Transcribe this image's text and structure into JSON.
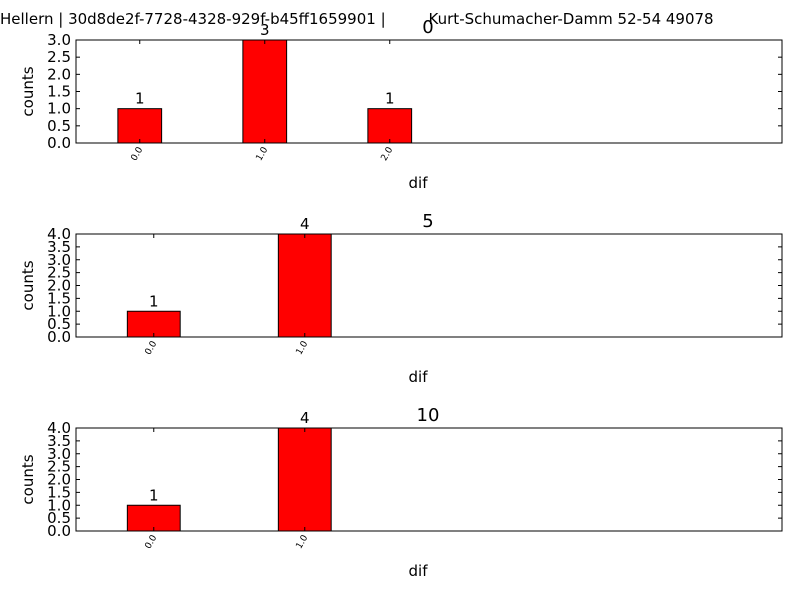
{
  "figure": {
    "suptitle": "Hellern | 30d8de2f-7728-4328-929f-b45ff1659901 |         Kurt-Schumacher-Damm 52-54 49078",
    "bar_color": "#ff0000",
    "edge_color": "#000000"
  },
  "chart_data": [
    {
      "type": "bar",
      "title": "0",
      "xlabel": "dif",
      "ylabel": "counts",
      "categories": [
        "0.0",
        "1.0",
        "2.0"
      ],
      "values": [
        1,
        3,
        1
      ],
      "data_labels": [
        "1",
        "3",
        "1"
      ],
      "ylim": [
        0,
        3.0
      ],
      "yticks": [
        "0.0",
        "0.5",
        "1.0",
        "1.5",
        "2.0",
        "2.5",
        "3.0"
      ],
      "grid": false
    },
    {
      "type": "bar",
      "title": "5",
      "xlabel": "dif",
      "ylabel": "counts",
      "categories": [
        "0.0",
        "1.0"
      ],
      "values": [
        1,
        4
      ],
      "data_labels": [
        "1",
        "4"
      ],
      "ylim": [
        0,
        4.0
      ],
      "yticks": [
        "0.0",
        "0.5",
        "1.0",
        "1.5",
        "2.0",
        "2.5",
        "3.0",
        "3.5",
        "4.0"
      ],
      "grid": false
    },
    {
      "type": "bar",
      "title": "10",
      "xlabel": "dif",
      "ylabel": "counts",
      "categories": [
        "0.0",
        "1.0"
      ],
      "values": [
        1,
        4
      ],
      "data_labels": [
        "1",
        "4"
      ],
      "ylim": [
        0,
        4.0
      ],
      "yticks": [
        "0.0",
        "0.5",
        "1.0",
        "1.5",
        "2.0",
        "2.5",
        "3.0",
        "3.5",
        "4.0"
      ],
      "grid": false
    }
  ]
}
